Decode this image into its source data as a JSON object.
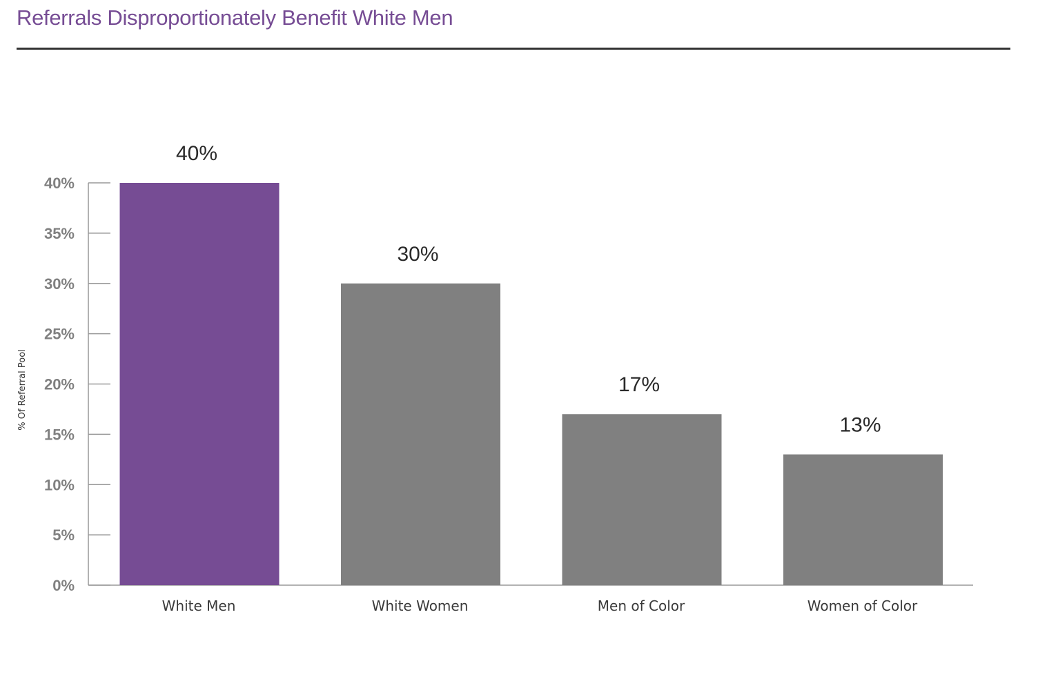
{
  "header": {
    "title": "Referrals Disproportionately Benefit White Men"
  },
  "colors": {
    "accent": "#764c94",
    "bar_default": "#808080",
    "axis": "#999999"
  },
  "chart_data": {
    "type": "bar",
    "title": "Referrals Disproportionately Benefit White Men",
    "categories": [
      "White Men",
      "White Women",
      "Men of Color",
      "Women of Color"
    ],
    "values": [
      40,
      30,
      17,
      13
    ],
    "data_labels": [
      "40%",
      "30%",
      "17%",
      "13%"
    ],
    "highlight_index": 0,
    "xlabel": "",
    "ylabel": "% Of Referral Pool",
    "ylim": [
      0,
      40
    ],
    "yticks": [
      0,
      5,
      10,
      15,
      20,
      25,
      30,
      35,
      40
    ],
    "ytick_labels": [
      "0%",
      "5%",
      "10%",
      "15%",
      "20%",
      "25%",
      "30%",
      "35%",
      "40%"
    ],
    "grid": false,
    "legend": "none"
  }
}
